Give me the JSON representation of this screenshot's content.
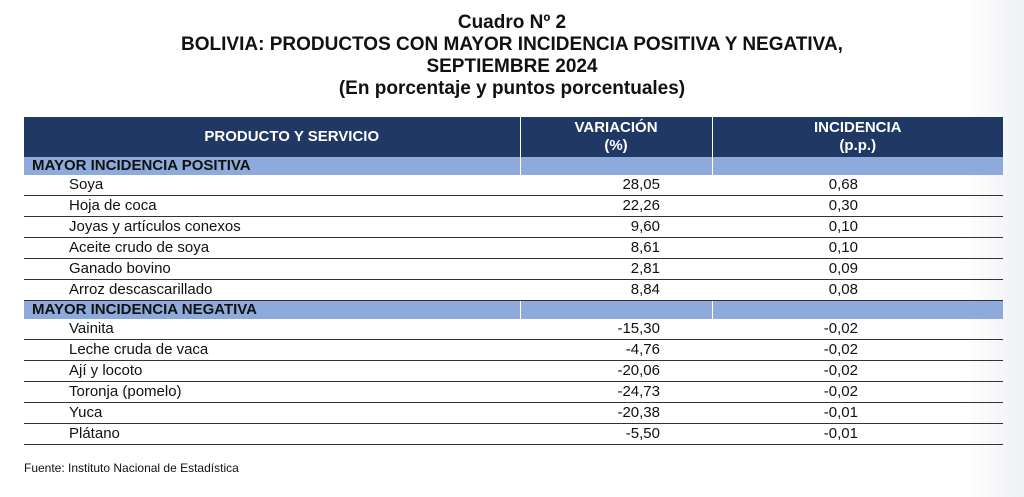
{
  "header": {
    "line1": "Cuadro Nº 2",
    "line2": "BOLIVIA: PRODUCTOS CON MAYOR INCIDENCIA POSITIVA Y NEGATIVA,",
    "line3": "SEPTIEMBRE 2024",
    "line4": "(En porcentaje y puntos porcentuales)"
  },
  "table": {
    "col_product": "PRODUCTO Y SERVICIO",
    "col_variation": "VARIACIÓN",
    "col_variation_unit": "(%)",
    "col_incidence": "INCIDENCIA",
    "col_incidence_unit": "(p.p.)",
    "positive_label": "MAYOR INCIDENCIA POSITIVA",
    "positive": [
      {
        "name": "Soya",
        "variation": "28,05",
        "incidence": "0,68"
      },
      {
        "name": "Hoja de coca",
        "variation": "22,26",
        "incidence": "0,30"
      },
      {
        "name": "Joyas y artículos conexos",
        "variation": "9,60",
        "incidence": "0,10"
      },
      {
        "name": "Aceite crudo de soya",
        "variation": "8,61",
        "incidence": "0,10"
      },
      {
        "name": "Ganado bovino",
        "variation": "2,81",
        "incidence": "0,09"
      },
      {
        "name": "Arroz descascarillado",
        "variation": "8,84",
        "incidence": "0,08"
      }
    ],
    "negative_label": "MAYOR INCIDENCIA NEGATIVA",
    "negative": [
      {
        "name": "Vainita",
        "variation": "-15,30",
        "incidence": "-0,02"
      },
      {
        "name": "Leche cruda de vaca",
        "variation": "-4,76",
        "incidence": "-0,02"
      },
      {
        "name": "Ají y locoto",
        "variation": "-20,06",
        "incidence": "-0,02"
      },
      {
        "name": "Toronja (pomelo)",
        "variation": "-24,73",
        "incidence": "-0,02"
      },
      {
        "name": "Yuca",
        "variation": "-20,38",
        "incidence": "-0,01"
      },
      {
        "name": "Plátano",
        "variation": "-5,50",
        "incidence": "-0,01"
      }
    ]
  },
  "source": "Fuente: Instituto Nacional de Estadística"
}
